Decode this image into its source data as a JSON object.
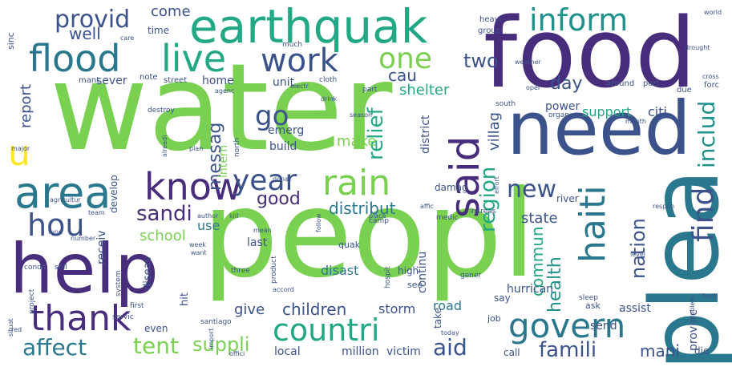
{
  "words": [
    {
      "text": "water",
      "color": "#7ad151",
      "rot": 0
    },
    {
      "text": "peopl",
      "color": "#7ad151",
      "rot": 0
    },
    {
      "text": "food",
      "color": "#472d7b",
      "rot": 0
    },
    {
      "text": "plea",
      "color": "#2a788e",
      "rot": 90
    },
    {
      "text": "need",
      "color": "#3b528b",
      "rot": 0
    },
    {
      "text": "help",
      "color": "#472d7b",
      "rot": 0
    },
    {
      "text": "earthquak",
      "color": "#22a884",
      "rot": 0
    },
    {
      "text": "flood",
      "color": "#2a788e",
      "rot": 0
    },
    {
      "text": "live",
      "color": "#22a884",
      "rot": 0
    },
    {
      "text": "area",
      "color": "#2a788e",
      "rot": 0
    },
    {
      "text": "said",
      "color": "#472d7b",
      "rot": 90
    },
    {
      "text": "know",
      "color": "#472d7b",
      "rot": 0
    },
    {
      "text": "year",
      "color": "#3b528b",
      "rot": 0
    },
    {
      "text": "rain",
      "color": "#7ad151",
      "rot": 0
    },
    {
      "text": "thank",
      "color": "#472d7b",
      "rot": 0
    },
    {
      "text": "hou",
      "color": "#3b528b",
      "rot": 0
    },
    {
      "text": "inform",
      "color": "#21918c",
      "rot": 0
    },
    {
      "text": "work",
      "color": "#3b528b",
      "rot": 0
    },
    {
      "text": "countri",
      "color": "#22a884",
      "rot": 0
    },
    {
      "text": "govern",
      "color": "#2a788e",
      "rot": 0
    },
    {
      "text": "haiti",
      "color": "#2a788e",
      "rot": 90
    },
    {
      "text": "find",
      "color": "#3b528b",
      "rot": 90
    },
    {
      "text": "one",
      "color": "#7ad151",
      "rot": 0
    },
    {
      "text": "u",
      "color": "#fde725",
      "rot": 0
    },
    {
      "text": "provid",
      "color": "#3b528b",
      "rot": 0
    },
    {
      "text": "well",
      "color": "#3b528b",
      "rot": 0
    },
    {
      "text": "go",
      "color": "#3b528b",
      "rot": 0
    },
    {
      "text": "new",
      "color": "#3b528b",
      "rot": 0
    },
    {
      "text": "good",
      "color": "#472d7b",
      "rot": 0
    },
    {
      "text": "sandi",
      "color": "#472d7b",
      "rot": 0
    },
    {
      "text": "tent",
      "color": "#7ad151",
      "rot": 0
    },
    {
      "text": "affect",
      "color": "#2a788e",
      "rot": 0
    },
    {
      "text": "aid",
      "color": "#3b528b",
      "rot": 0
    },
    {
      "text": "famili",
      "color": "#3b528b",
      "rot": 0
    },
    {
      "text": "suppli",
      "color": "#7ad151",
      "rot": 0
    },
    {
      "text": "includ",
      "color": "#21918c",
      "rot": 90
    },
    {
      "text": "region",
      "color": "#22a884",
      "rot": 90
    },
    {
      "text": "relief",
      "color": "#22a884",
      "rot": 90
    },
    {
      "text": "nation",
      "color": "#3b528b",
      "rot": 90
    },
    {
      "text": "two",
      "color": "#3b528b",
      "rot": 0
    },
    {
      "text": "day",
      "color": "#3b528b",
      "rot": 0
    },
    {
      "text": "distribut",
      "color": "#2a788e",
      "rot": 0
    },
    {
      "text": "messag",
      "color": "#3b528b",
      "rot": 90
    },
    {
      "text": "children",
      "color": "#3b528b",
      "rot": 0
    },
    {
      "text": "health",
      "color": "#21918c",
      "rot": 90
    },
    {
      "text": "commun",
      "color": "#22a884",
      "rot": 90
    },
    {
      "text": "cau",
      "color": "#3b528b",
      "rot": 0
    },
    {
      "text": "shelter",
      "color": "#22a884",
      "rot": 0
    },
    {
      "text": "report",
      "color": "#3b528b",
      "rot": 90
    },
    {
      "text": "come",
      "color": "#3b528b",
      "rot": 0
    },
    {
      "text": "school",
      "color": "#7ad151",
      "rot": 0
    },
    {
      "text": "give",
      "color": "#3b528b",
      "rot": 0
    },
    {
      "text": "state",
      "color": "#3b528b",
      "rot": 0
    },
    {
      "text": "mani",
      "color": "#3b528b",
      "rot": 0
    },
    {
      "text": "villag",
      "color": "#3b528b",
      "rot": 90
    },
    {
      "text": "make",
      "color": "#7ad151",
      "rot": 0
    },
    {
      "text": "use",
      "color": "#2a788e",
      "rot": 0
    },
    {
      "text": "emerg",
      "color": "#3b528b",
      "rot": 0
    },
    {
      "text": "disast",
      "color": "#2a788e",
      "rot": 0
    },
    {
      "text": "storm",
      "color": "#3b528b",
      "rot": 0
    },
    {
      "text": "citi",
      "color": "#3b528b",
      "rot": 0
    },
    {
      "text": "support",
      "color": "#22a884",
      "rot": 0
    },
    {
      "text": "power",
      "color": "#3b528b",
      "rot": 0
    },
    {
      "text": "home",
      "color": "#3b528b",
      "rot": 0
    },
    {
      "text": "last",
      "color": "#3b528b",
      "rot": 0
    },
    {
      "text": "road",
      "color": "#2a788e",
      "rot": 0
    },
    {
      "text": "unit",
      "color": "#3b528b",
      "rot": 0
    },
    {
      "text": "sever",
      "color": "#3b528b",
      "rot": 0
    },
    {
      "text": "build",
      "color": "#3b528b",
      "rot": 0
    },
    {
      "text": "send",
      "color": "#3b528b",
      "rot": 0
    },
    {
      "text": "assist",
      "color": "#3b528b",
      "rot": 0
    },
    {
      "text": "provinc",
      "color": "#3b528b",
      "rot": 90
    },
    {
      "text": "local",
      "color": "#3b528b",
      "rot": 0
    },
    {
      "text": "million",
      "color": "#3b528b",
      "rot": 0
    },
    {
      "text": "victim",
      "color": "#3b528b",
      "rot": 0
    },
    {
      "text": "district",
      "color": "#3b528b",
      "rot": 90
    },
    {
      "text": "damag",
      "color": "#3b528b",
      "rot": 0
    },
    {
      "text": "continu",
      "color": "#3b528b",
      "rot": 90
    },
    {
      "text": "take",
      "color": "#3b528b",
      "rot": 90
    },
    {
      "text": "river",
      "color": "#3b528b",
      "rot": 0
    },
    {
      "text": "hurrican",
      "color": "#3b528b",
      "rot": 0
    },
    {
      "text": "intern",
      "color": "#7ad151",
      "rot": 90
    },
    {
      "text": "receiv",
      "color": "#3b528b",
      "rot": 90
    },
    {
      "text": "develop",
      "color": "#3b528b",
      "rot": 90
    },
    {
      "text": "diseas",
      "color": "#3b528b",
      "rot": 90
    },
    {
      "text": "hit",
      "color": "#3b528b",
      "rot": 90
    },
    {
      "text": "even",
      "color": "#3b528b",
      "rot": 0
    },
    {
      "text": "crop",
      "color": "#7ad151",
      "rot": 90
    },
    {
      "text": "quak",
      "color": "#3b528b",
      "rot": 0
    },
    {
      "text": "high",
      "color": "#3b528b",
      "rot": 0
    },
    {
      "text": "see",
      "color": "#3b528b",
      "rot": 0
    },
    {
      "text": "say",
      "color": "#3b528b",
      "rot": 0
    },
    {
      "text": "ask",
      "color": "#3b528b",
      "rot": 0
    },
    {
      "text": "job",
      "color": "#3b528b",
      "rot": 0
    },
    {
      "text": "call",
      "color": "#3b528b",
      "rot": 0
    },
    {
      "text": "die",
      "color": "#3b528b",
      "rot": 0
    },
    {
      "text": "street",
      "color": "#3b528b",
      "rot": 0
    },
    {
      "text": "note",
      "color": "#3b528b",
      "rot": 0
    },
    {
      "text": "mant",
      "color": "#3b528b",
      "rot": 0
    },
    {
      "text": "time",
      "color": "#3b528b",
      "rot": 0
    },
    {
      "text": "heavi",
      "color": "#3b528b",
      "rot": 0
    },
    {
      "text": "group",
      "color": "#3b528b",
      "rot": 0
    },
    {
      "text": "sinc",
      "color": "#3b528b",
      "rot": 90
    },
    {
      "text": "port",
      "color": "#3b528b",
      "rot": 0
    },
    {
      "text": "forc",
      "color": "#3b528b",
      "rot": 0
    },
    {
      "text": "around",
      "color": "#3b528b",
      "rot": 0
    },
    {
      "text": "due",
      "color": "#3b528b",
      "rot": 0
    },
    {
      "text": "much",
      "color": "#3b528b",
      "rot": 0
    },
    {
      "text": "cloth",
      "color": "#3b528b",
      "rot": 0
    },
    {
      "text": "part",
      "color": "#3b528b",
      "rot": 0
    },
    {
      "text": "south",
      "color": "#3b528b",
      "rot": 0
    },
    {
      "text": "organ",
      "color": "#3b528b",
      "rot": 0
    },
    {
      "text": "north",
      "color": "#3b528b",
      "rot": 90
    },
    {
      "text": "kill",
      "color": "#3b528b",
      "rot": 0
    },
    {
      "text": "first",
      "color": "#3b528b",
      "rot": 0
    },
    {
      "text": "servic",
      "color": "#3b528b",
      "rot": 0
    },
    {
      "text": "system",
      "color": "#3b528b",
      "rot": 90
    },
    {
      "text": "camp",
      "color": "#3b528b",
      "rot": 0
    },
    {
      "text": "place",
      "color": "#3b528b",
      "rot": 0
    },
    {
      "text": "increas",
      "color": "#3b528b",
      "rot": 0
    },
    {
      "text": "medic",
      "color": "#3b528b",
      "rot": 0
    },
    {
      "text": "three",
      "color": "#3b528b",
      "rot": 0
    },
    {
      "text": "product",
      "color": "#3b528b",
      "rot": 90
    },
    {
      "text": "hospit",
      "color": "#3b528b",
      "rot": 90
    },
    {
      "text": "gener",
      "color": "#3b528b",
      "rot": 0
    },
    {
      "text": "sleep",
      "color": "#3b528b",
      "rot": 0
    },
    {
      "text": "problem",
      "color": "#3b528b",
      "rot": 90
    },
    {
      "text": "santiago",
      "color": "#3b528b",
      "rot": 0
    },
    {
      "text": "project",
      "color": "#3b528b",
      "rot": 90
    },
    {
      "text": "condit",
      "color": "#3b528b",
      "rot": 0
    },
    {
      "text": "still",
      "color": "#3b528b",
      "rot": 0
    },
    {
      "text": "world",
      "color": "#3b528b",
      "rot": 0
    },
    {
      "text": "month",
      "color": "#3b528b",
      "rot": 0
    },
    {
      "text": "destroy",
      "color": "#3b528b",
      "rot": 0
    },
    {
      "text": "fund",
      "color": "#3b528b",
      "rot": 0
    },
    {
      "text": "number",
      "color": "#3b528b",
      "rot": 0
    },
    {
      "text": "respon",
      "color": "#3b528b",
      "rot": 0
    },
    {
      "text": "situat",
      "color": "#3b528b",
      "rot": 90
    },
    {
      "text": "red",
      "color": "#3b528b",
      "rot": 0
    },
    {
      "text": "import",
      "color": "#3b528b",
      "rot": 90
    },
    {
      "text": "offici",
      "color": "#3b528b",
      "rot": 0
    },
    {
      "text": "agenc",
      "color": "#3b528b",
      "rot": 0
    },
    {
      "text": "oper",
      "color": "#3b528b",
      "rot": 0
    },
    {
      "text": "care",
      "color": "#3b528b",
      "rot": 0
    },
    {
      "text": "donat",
      "color": "#3b528b",
      "rot": 0
    },
    {
      "text": "follow",
      "color": "#3b528b",
      "rot": 90
    },
    {
      "text": "effort",
      "color": "#3b528b",
      "rot": 90
    },
    {
      "text": "affic",
      "color": "#3b528b",
      "rot": 0
    },
    {
      "text": "agricultur",
      "color": "#3b528b",
      "rot": 0
    },
    {
      "text": "major",
      "color": "#3b528b",
      "rot": 0
    },
    {
      "text": "accord",
      "color": "#3b528b",
      "rot": 0
    },
    {
      "text": "drink",
      "color": "#3b528b",
      "rot": 0
    },
    {
      "text": "electr",
      "color": "#3b528b",
      "rot": 0
    },
    {
      "text": "season",
      "color": "#3b528b",
      "rot": 0
    },
    {
      "text": "plan",
      "color": "#3b528b",
      "rot": 0
    },
    {
      "text": "team",
      "color": "#3b528b",
      "rot": 0
    },
    {
      "text": "week",
      "color": "#3b528b",
      "rot": 0
    },
    {
      "text": "want",
      "color": "#3b528b",
      "rot": 0
    },
    {
      "text": "author",
      "color": "#3b528b",
      "rot": 0
    },
    {
      "text": "drought",
      "color": "#3b528b",
      "rot": 0
    },
    {
      "text": "alreadi",
      "color": "#3b528b",
      "rot": 90
    },
    {
      "text": "mean",
      "color": "#3b528b",
      "rot": 0
    },
    {
      "text": "today",
      "color": "#3b528b",
      "rot": 0
    },
    {
      "text": "weather",
      "color": "#3b528b",
      "rot": 0
    },
    {
      "text": "bush",
      "color": "#3b528b",
      "rot": 0
    },
    {
      "text": "cross",
      "color": "#3b528b",
      "rot": 0
    },
    {
      "text": "level",
      "color": "#3b528b",
      "rot": 0
    }
  ]
}
